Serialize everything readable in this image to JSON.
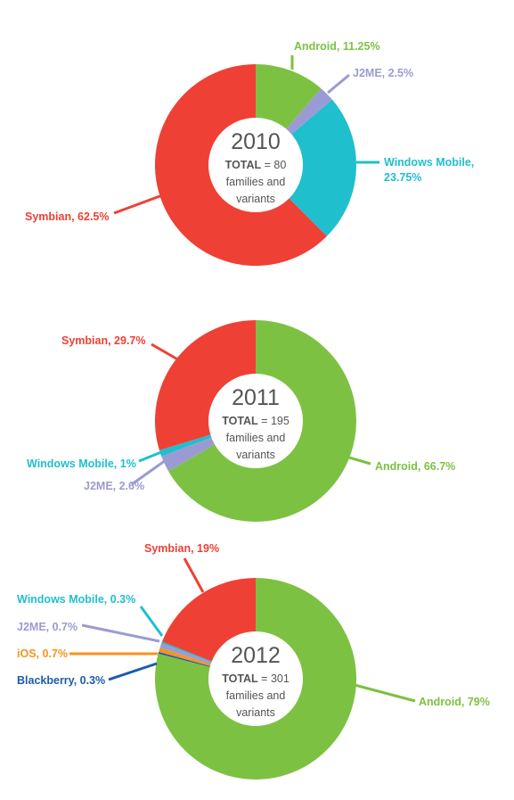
{
  "colors": {
    "Android": "#7dc142",
    "J2ME": "#9b9bd3",
    "Windows Mobile": "#20bfcd",
    "Symbian": "#ef4035",
    "iOS": "#f7941d",
    "Blackberry": "#1d5ca8"
  },
  "chart_data": [
    {
      "type": "pie",
      "title": "2010",
      "total_label": "TOTAL",
      "total_text": " = 80",
      "subtitle_lines": [
        "families and",
        "variants"
      ],
      "slices": [
        {
          "name": "Android",
          "value": 11.25,
          "label": "Android, 11.25%"
        },
        {
          "name": "J2ME",
          "value": 2.5,
          "label": "J2ME, 2.5%"
        },
        {
          "name": "Windows Mobile",
          "value": 23.75,
          "label": [
            "Windows Mobile,",
            "23.75%"
          ]
        },
        {
          "name": "Symbian",
          "value": 62.5,
          "label": "Symbian, 62.5%"
        }
      ]
    },
    {
      "type": "pie",
      "title": "2011",
      "total_label": "TOTAL",
      "total_text": " = 195",
      "subtitle_lines": [
        "families and",
        "variants"
      ],
      "slices": [
        {
          "name": "Android",
          "value": 66.7,
          "label": "Android, 66.7%"
        },
        {
          "name": "J2ME",
          "value": 2.6,
          "label": "J2ME, 2.6%"
        },
        {
          "name": "Windows Mobile",
          "value": 1,
          "label": "Windows Mobile, 1%"
        },
        {
          "name": "Symbian",
          "value": 29.7,
          "label": "Symbian, 29.7%"
        }
      ]
    },
    {
      "type": "pie",
      "title": "2012",
      "total_label": "TOTAL",
      "total_text": " = 301",
      "subtitle_lines": [
        "families and",
        "variants"
      ],
      "slices": [
        {
          "name": "Android",
          "value": 79,
          "label": "Android, 79%"
        },
        {
          "name": "Blackberry",
          "value": 0.3,
          "label": "Blackberry, 0.3%"
        },
        {
          "name": "iOS",
          "value": 0.7,
          "label": "iOS, 0.7%"
        },
        {
          "name": "J2ME",
          "value": 0.7,
          "label": "J2ME, 0.7%"
        },
        {
          "name": "Windows Mobile",
          "value": 0.3,
          "label": "Windows Mobile, 0.3%"
        },
        {
          "name": "Symbian",
          "value": 19,
          "label": "Symbian, 19%"
        }
      ]
    }
  ]
}
